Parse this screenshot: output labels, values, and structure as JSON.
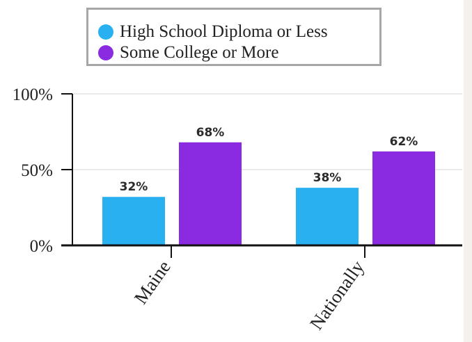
{
  "colors": {
    "series_1": "#29b0f1",
    "series_2": "#8a2be2"
  },
  "chart_data": {
    "type": "bar",
    "categories": [
      "Maine",
      "Nationally"
    ],
    "series": [
      {
        "name": "High School Diploma or Less",
        "values": [
          32,
          38
        ],
        "labels": [
          "32%",
          "38%"
        ]
      },
      {
        "name": "Some College or More",
        "values": [
          68,
          62
        ],
        "labels": [
          "68%",
          "62%"
        ]
      }
    ],
    "ylim": [
      0,
      100
    ],
    "yticks": [
      0,
      50,
      100
    ],
    "ytick_labels": [
      "0%",
      "50%",
      "100%"
    ],
    "grid": true,
    "legend_position": "top"
  }
}
